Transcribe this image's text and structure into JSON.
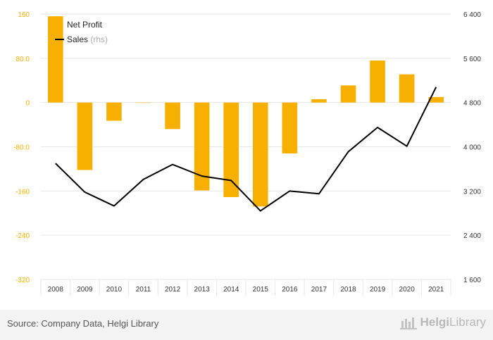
{
  "colors": {
    "bar": "#f8b000",
    "line": "#000000",
    "left_tick_text": "#f8b000",
    "right_tick_text": "#333333",
    "grid": "#e6e6e6"
  },
  "chart_data": {
    "type": "bar+line",
    "categories": [
      "2008",
      "2009",
      "2010",
      "2011",
      "2012",
      "2013",
      "2014",
      "2015",
      "2016",
      "2017",
      "2018",
      "2019",
      "2020",
      "2021"
    ],
    "series": [
      {
        "name": "Net Profit",
        "type": "bar",
        "axis": "left",
        "values": [
          156,
          -122,
          -33,
          0,
          -48,
          -159,
          -171,
          -188,
          -92,
          6,
          31,
          76,
          51,
          10
        ]
      },
      {
        "name": "Sales",
        "type": "line",
        "axis": "right",
        "values": [
          3700,
          3180,
          2930,
          3410,
          3680,
          3470,
          3390,
          2840,
          3200,
          3150,
          3910,
          4350,
          4010,
          5080
        ]
      }
    ],
    "legend": [
      {
        "label": "Net Profit",
        "suffix": ""
      },
      {
        "label": "Sales",
        "suffix": "(rhs)"
      }
    ],
    "legend_position": "top-left",
    "y_left": {
      "min": -320,
      "max": 160,
      "ticks": [
        "160",
        "80.0",
        "0",
        "-80.0",
        "-160",
        "-240",
        "-320"
      ]
    },
    "y_right": {
      "min": 1600,
      "max": 6400,
      "ticks": [
        "6 400",
        "5 600",
        "4 800",
        "4 000",
        "3 200",
        "2 400",
        "1 600"
      ]
    },
    "grid": "horizontal"
  },
  "footer": {
    "source": "Source: Company Data, Helgi Library",
    "brand_bold": "Helgi",
    "brand_light": "Library"
  }
}
